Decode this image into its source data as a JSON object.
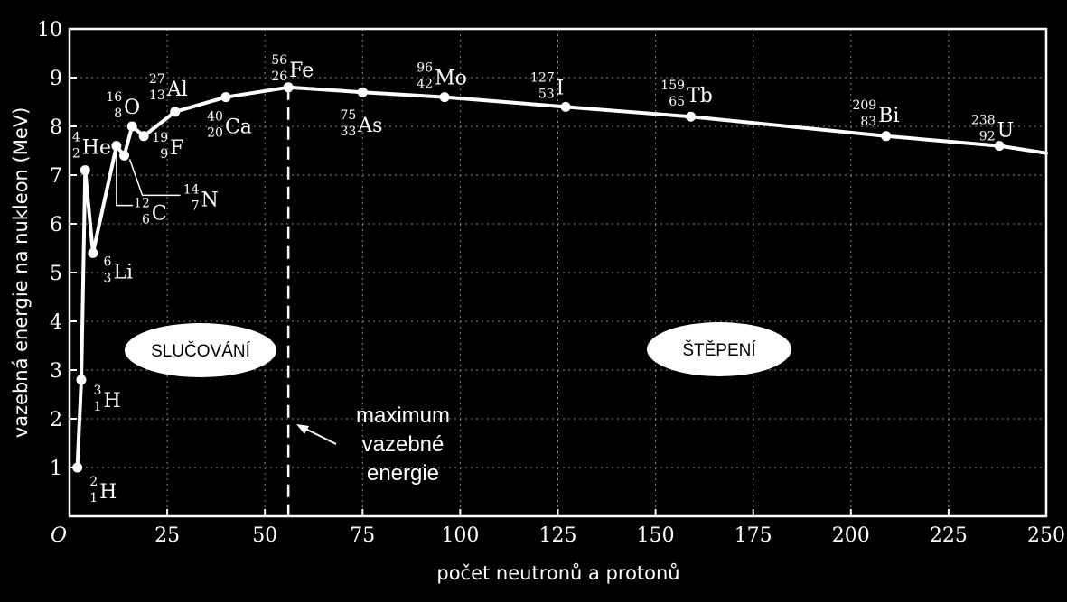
{
  "chart_data": {
    "type": "line",
    "xlabel": "počet neutronů a protonů",
    "ylabel": "vazebná energie na nukleon (MeV)",
    "xlim": [
      0,
      250
    ],
    "ylim": [
      0,
      10
    ],
    "x_ticks": [
      "O",
      "25",
      "50",
      "75",
      "100",
      "125",
      "150",
      "175",
      "200",
      "225",
      "250"
    ],
    "y_ticks": [
      "1",
      "2",
      "3",
      "4",
      "5",
      "6",
      "7",
      "8",
      "9",
      "10"
    ],
    "grid": "dotted",
    "points": [
      {
        "x": 2,
        "y": 1.0,
        "symbol": "H",
        "mass": "2",
        "z": "1"
      },
      {
        "x": 3,
        "y": 2.8,
        "symbol": "H",
        "mass": "3",
        "z": "1"
      },
      {
        "x": 4,
        "y": 7.1,
        "symbol": "He",
        "mass": "4",
        "z": "2"
      },
      {
        "x": 6,
        "y": 5.4,
        "symbol": "Li",
        "mass": "6",
        "z": "3"
      },
      {
        "x": 12,
        "y": 7.6,
        "symbol": "C",
        "mass": "12",
        "z": "6"
      },
      {
        "x": 14,
        "y": 7.4,
        "symbol": "N",
        "mass": "14",
        "z": "7"
      },
      {
        "x": 16,
        "y": 8.0,
        "symbol": "O",
        "mass": "16",
        "z": "8"
      },
      {
        "x": 19,
        "y": 7.8,
        "symbol": "F",
        "mass": "19",
        "z": "9"
      },
      {
        "x": 27,
        "y": 8.3,
        "symbol": "Al",
        "mass": "27",
        "z": "13"
      },
      {
        "x": 40,
        "y": 8.6,
        "symbol": "Ca",
        "mass": "40",
        "z": "20"
      },
      {
        "x": 56,
        "y": 8.8,
        "symbol": "Fe",
        "mass": "56",
        "z": "26"
      },
      {
        "x": 75,
        "y": 8.7,
        "symbol": "As",
        "mass": "75",
        "z": "33"
      },
      {
        "x": 96,
        "y": 8.6,
        "symbol": "Mo",
        "mass": "96",
        "z": "42"
      },
      {
        "x": 127,
        "y": 8.4,
        "symbol": "I",
        "mass": "127",
        "z": "53"
      },
      {
        "x": 159,
        "y": 8.2,
        "symbol": "Tb",
        "mass": "159",
        "z": "65"
      },
      {
        "x": 209,
        "y": 7.8,
        "symbol": "Bi",
        "mass": "209",
        "z": "83"
      },
      {
        "x": 238,
        "y": 7.6,
        "symbol": "U",
        "mass": "238",
        "z": "92"
      }
    ],
    "curve_end": {
      "x": 250,
      "y": 7.45
    },
    "max_binding_x": 56,
    "regions": {
      "fusion": "SLUČOVÁNÍ",
      "fission": "ŠTĚPENÍ"
    },
    "annotation": [
      "maximum",
      "vazebné",
      "energie"
    ],
    "colors": {
      "background": "#000000",
      "line": "#ffffff",
      "grid": "#888888",
      "region_fill": "#ffffff"
    }
  }
}
